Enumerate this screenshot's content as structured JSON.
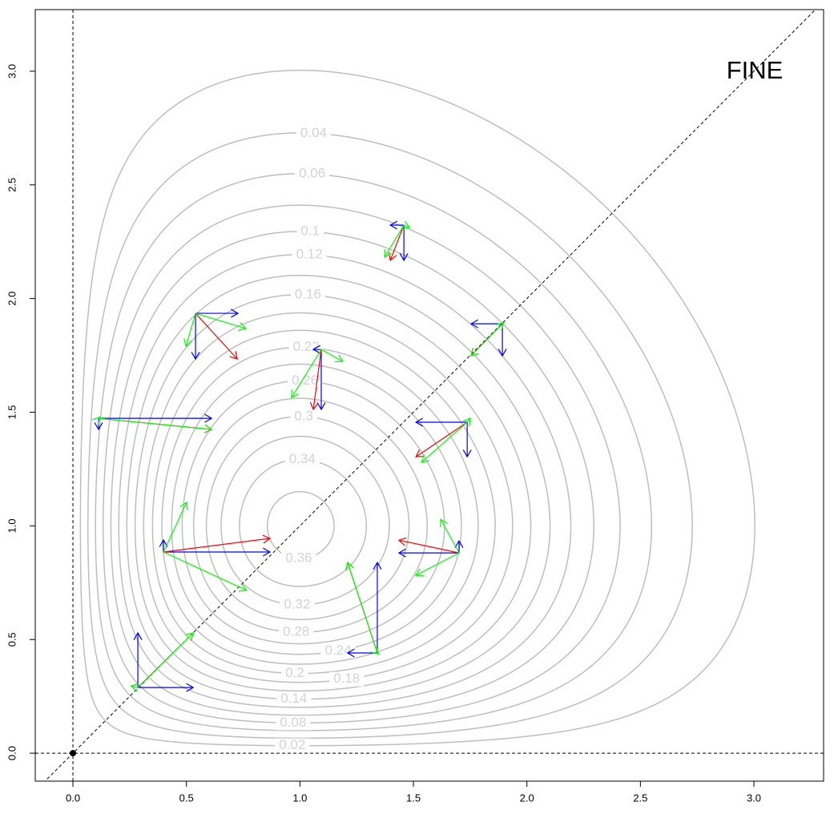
{
  "chart_data": {
    "type": "contour",
    "annotation": "FINE",
    "xlim": [
      -0.166,
      3.307
    ],
    "ylim": [
      -0.123,
      3.271
    ],
    "xticks": [
      {
        "value": 0,
        "label": "0.0"
      },
      0.5,
      {
        "value": 1,
        "label": "1.0"
      },
      1.5,
      {
        "value": 2,
        "label": "2.0"
      },
      2.5,
      {
        "value": 3,
        "label": "3.0"
      }
    ],
    "yticks": [
      {
        "value": 0,
        "label": "0.0"
      },
      0.5,
      {
        "value": 1,
        "label": "1.0"
      },
      1.5,
      {
        "value": 2,
        "label": "2.0"
      },
      2.5,
      {
        "value": 3,
        "label": "3.0"
      }
    ],
    "levels": [
      0.02,
      0.04,
      0.06,
      0.08,
      0.1,
      0.12,
      0.14,
      0.16,
      0.18,
      0.2,
      0.22,
      0.24,
      0.26,
      0.28,
      0.3,
      0.32,
      0.34,
      0.36
    ],
    "contour_color": "#bebebe",
    "label_color": "#d3d3d3",
    "reference_lines": {
      "hline": 0,
      "vline": 0,
      "abline": [
        0,
        1
      ]
    },
    "point": [
      0,
      0
    ],
    "colors": {
      "blue": "#0000ff",
      "red": "#ff0000",
      "green": "#00ff00"
    },
    "arrows": [
      {
        "x": 0.286,
        "y": 0.289,
        "blue": [
          0.244,
          0.24
        ],
        "red": [
          0.244,
          0.24
        ],
        "green": [
          [
            0.244,
            0.24
          ],
          [
            -0.03,
            0.007
          ]
        ]
      },
      {
        "x": 0.399,
        "y": 0.885,
        "blue": [
          0.469,
          0.053
        ],
        "red": [
          0.469,
          0.06
        ],
        "green": [
          [
            0.102,
            0.219
          ],
          [
            0.366,
            -0.169
          ]
        ]
      },
      {
        "x": 0.54,
        "y": 1.935,
        "blue": [
          0.187,
          -0.201
        ],
        "red": [
          0.184,
          -0.201
        ],
        "green": [
          [
            0.222,
            -0.067
          ],
          [
            -0.042,
            -0.145
          ]
        ]
      },
      {
        "x": 0.113,
        "y": 1.473,
        "blue": [
          0.498,
          -0.049
        ],
        "red": [
          0.498,
          -0.049
        ],
        "green": [
          [
            0.498,
            -0.049
          ],
          [
            0.005,
            0.006
          ]
        ]
      },
      {
        "x": 1.094,
        "y": 1.776,
        "blue": [
          -0.035,
          -0.264
        ],
        "red": [
          -0.035,
          -0.264
        ],
        "green": [
          [
            0.095,
            -0.053
          ],
          [
            -0.131,
            -0.212
          ]
        ]
      },
      {
        "x": 1.458,
        "y": 2.323,
        "blue": [
          -0.06,
          -0.155
        ],
        "red": [
          -0.06,
          -0.155
        ],
        "green": [
          [
            0.025,
            -0.011
          ],
          [
            -0.085,
            -0.141
          ]
        ]
      },
      {
        "x": 1.892,
        "y": 1.889,
        "blue": [
          -0.138,
          -0.141
        ],
        "red": [
          -0.138,
          -0.141
        ],
        "green": [
          [
            -0.138,
            -0.141
          ],
          [
            0.005,
            0.005
          ]
        ]
      },
      {
        "x": 1.737,
        "y": 1.456,
        "blue": [
          -0.226,
          -0.152
        ],
        "red": [
          -0.226,
          -0.152
        ],
        "green": [
          [
            -0.201,
            -0.176
          ],
          [
            0.014,
            0.018
          ]
        ]
      },
      {
        "x": 1.701,
        "y": 0.881,
        "blue": [
          -0.265,
          0.053
        ],
        "red": [
          -0.265,
          0.056
        ],
        "green": [
          [
            -0.081,
            0.148
          ],
          [
            -0.191,
            -0.099
          ]
        ]
      },
      {
        "x": 1.341,
        "y": 0.441,
        "blue": [
          -0.131,
          0.398
        ],
        "red": [
          -0.131,
          0.398
        ],
        "green": [
          [
            -0.131,
            0.398
          ],
          [
            0.005,
            -0.005
          ]
        ]
      }
    ]
  }
}
